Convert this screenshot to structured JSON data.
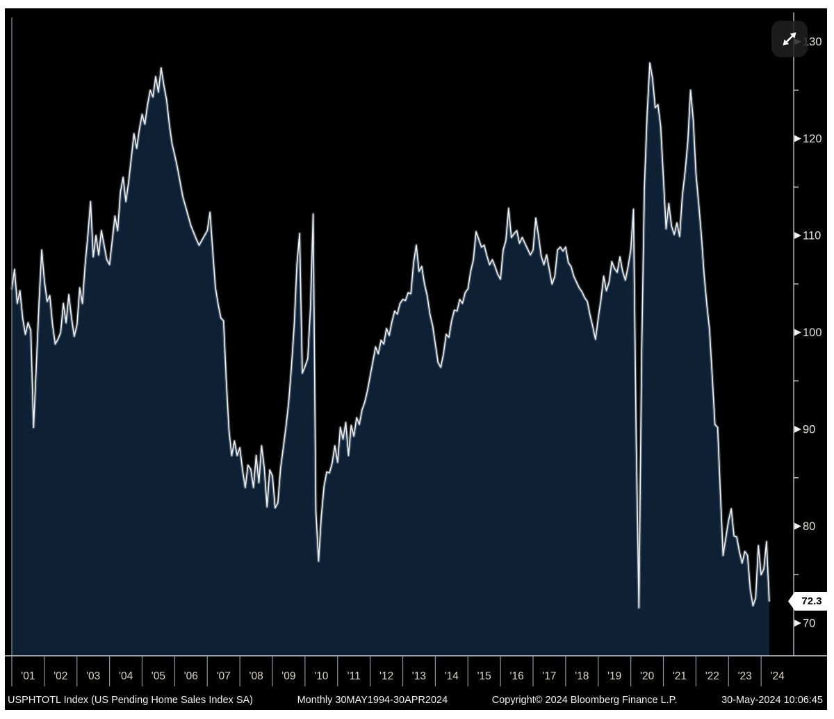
{
  "chart_data": {
    "type": "area",
    "title": "US Pending Home Sales Index SA (USPHTOTL Index)",
    "x_start": "2001-01",
    "x_end": "2024-04",
    "frequency": "Monthly",
    "x_tick_labels": [
      "'01",
      "'02",
      "'03",
      "'04",
      "'05",
      "'06",
      "'07",
      "'08",
      "'09",
      "'10",
      "'11",
      "'12",
      "'13",
      "'14",
      "'15",
      "'16",
      "'17",
      "'18",
      "'19",
      "'20",
      "'21",
      "'22",
      "'23",
      "'24"
    ],
    "y_major_ticks": [
      70,
      80,
      90,
      100,
      110,
      120,
      130
    ],
    "y_minor_ticks": [
      75,
      85,
      95,
      105,
      115,
      125
    ],
    "ylim": [
      66.5,
      132.5
    ],
    "legend_position": "none",
    "grid": "off",
    "values": [
      104.5,
      106.5,
      103.0,
      104.3,
      101.5,
      99.8,
      101.0,
      100.2,
      90.2,
      96.5,
      103.0,
      108.5,
      105.3,
      103.2,
      103.8,
      100.8,
      98.8,
      99.3,
      100.0,
      103.0,
      101.0,
      103.9,
      101.5,
      99.6,
      100.8,
      104.6,
      103.0,
      107.0,
      110.0,
      113.5,
      107.8,
      110.0,
      108.0,
      110.5,
      109.0,
      107.5,
      107.0,
      109.5,
      112.0,
      110.5,
      114.5,
      116.0,
      113.5,
      115.5,
      118.0,
      120.5,
      119.0,
      121.0,
      122.5,
      121.5,
      123.5,
      125.0,
      124.3,
      126.4,
      124.8,
      127.3,
      125.5,
      124.0,
      121.5,
      119.5,
      118.3,
      117.0,
      115.5,
      114.0,
      113.0,
      112.0,
      111.0,
      110.3,
      109.6,
      109.0,
      109.5,
      110.0,
      110.5,
      112.4,
      108.4,
      104.6,
      102.9,
      101.5,
      101.2,
      95.0,
      89.9,
      87.3,
      88.8,
      87.3,
      88.1,
      85.8,
      84.0,
      86.3,
      85.9,
      84.0,
      87.3,
      84.5,
      88.3,
      86.0,
      82.0,
      85.8,
      85.2,
      81.9,
      82.4,
      86.0,
      88.1,
      90.3,
      92.8,
      96.4,
      100.7,
      107.0,
      110.2,
      95.8,
      96.5,
      97.3,
      102.5,
      112.2,
      81.6,
      76.4,
      81.0,
      84.1,
      85.6,
      85.5,
      86.5,
      88.3,
      86.6,
      90.2,
      89.0,
      90.7,
      87.3,
      90.4,
      89.3,
      91.2,
      90.5,
      92.0,
      92.8,
      94.0,
      95.5,
      97.0,
      98.5,
      97.8,
      99.2,
      98.8,
      100.4,
      99.7,
      101.1,
      102.2,
      101.9,
      103.0,
      103.4,
      103.3,
      104.1,
      104.0,
      107.2,
      109.0,
      106.3,
      106.8,
      105.0,
      103.8,
      101.9,
      100.7,
      98.8,
      96.9,
      96.4,
      97.8,
      99.8,
      99.5,
      101.2,
      102.3,
      102.2,
      103.4,
      103.0,
      104.1,
      104.5,
      106.3,
      107.5,
      110.4,
      109.6,
      108.8,
      109.0,
      107.9,
      107.0,
      107.5,
      106.8,
      106.0,
      105.5,
      108.5,
      109.5,
      112.8,
      109.8,
      110.2,
      110.5,
      109.2,
      109.8,
      109.2,
      108.6,
      108.0,
      108.5,
      111.8,
      110.0,
      107.9,
      107.0,
      108.0,
      106.5,
      105.0,
      105.8,
      108.5,
      108.8,
      108.4,
      108.8,
      107.2,
      106.8,
      105.8,
      105.2,
      104.6,
      104.2,
      103.6,
      103.2,
      101.8,
      100.6,
      99.3,
      101.5,
      103.4,
      105.8,
      104.3,
      105.2,
      107.3,
      106.6,
      106.2,
      107.8,
      106.3,
      105.4,
      106.8,
      108.5,
      112.7,
      89.0,
      71.6,
      98.0,
      115.0,
      122.5,
      127.8,
      126.2,
      123.2,
      123.5,
      121.3,
      116.0,
      110.7,
      113.3,
      111.0,
      110.1,
      111.3,
      109.9,
      114.1,
      116.6,
      119.7,
      125.0,
      121.9,
      116.4,
      113.3,
      110.0,
      106.0,
      102.9,
      100.3,
      95.5,
      90.5,
      90.2,
      83.5,
      77.0,
      78.8,
      80.6,
      81.8,
      79.0,
      78.9,
      77.4,
      76.2,
      77.4,
      77.0,
      73.5,
      71.8,
      72.6,
      78.0,
      75.0,
      75.6,
      78.4,
      72.3
    ],
    "last_value": 72.3,
    "last_value_label": "72.3"
  },
  "footer": {
    "security_description": "USPHTOTL Index (US Pending Home Sales Index SA)",
    "periodicity_range": "Monthly 30MAY1994-30APR2024",
    "copyright": "Copyright© 2024 Bloomberg Finance L.P.",
    "timestamp": "30-May-2024 10:06:45"
  },
  "colors": {
    "panel_bg": "#000000",
    "page_bg": "#ffffff",
    "area_fill": "#0e2034",
    "line": "#eef1f3",
    "line_glow": "rgba(190,205,220,0.30)",
    "axis": "#b9bec2",
    "tick": "#8f9498",
    "tick_label": "#ddd8cb",
    "y_label": "#e6e3da",
    "badge_bg": "#ffffff",
    "badge_text": "#000000"
  }
}
